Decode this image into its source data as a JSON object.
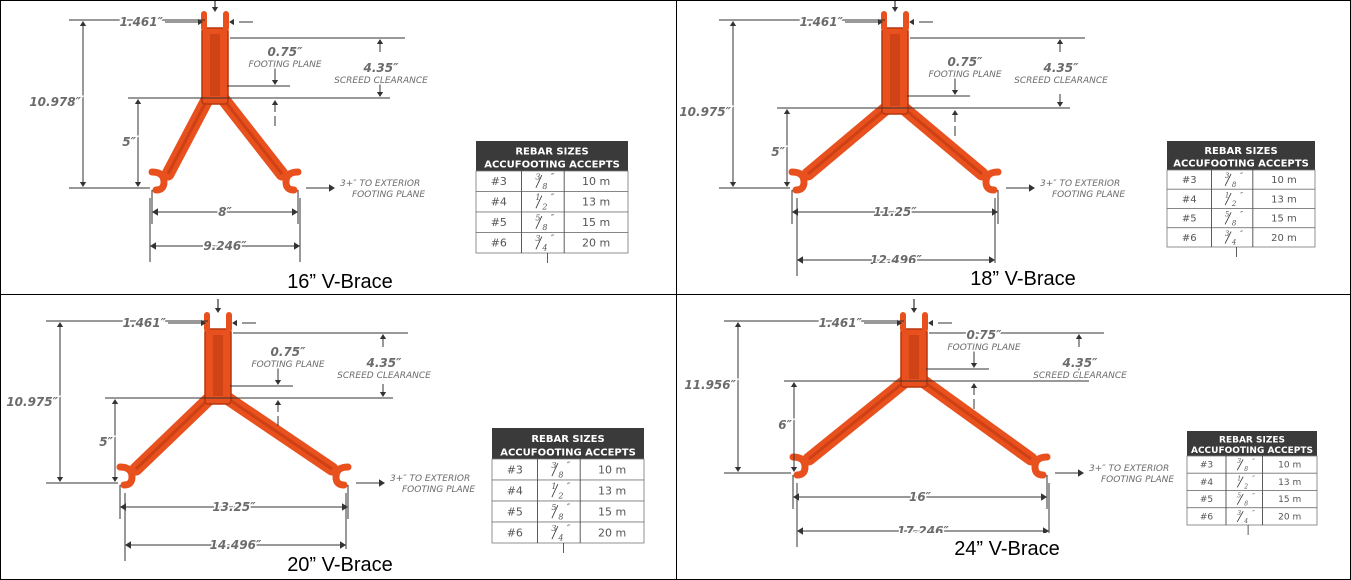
{
  "panels": [
    {
      "caption": "16” V-Brace",
      "dims": {
        "height": "10.978″",
        "top_width": "1.461″",
        "footing": "0.75″",
        "footing_label": "FOOTING PLANE",
        "screed": "4.35″",
        "screed_label": "SCREED CLEARANCE",
        "leg": "5″",
        "inner": "8″",
        "outer": "9.246″",
        "exterior_1": "3+″ TO EXTERIOR",
        "exterior_2": "FOOTING PLANE"
      }
    },
    {
      "caption": "18” V-Brace",
      "dims": {
        "height": "10.975″",
        "top_width": "1.461″",
        "footing": "0.75″",
        "footing_label": "FOOTING PLANE",
        "screed": "4.35″",
        "screed_label": "SCREED CLEARANCE",
        "leg": "5″",
        "inner": "11.25″",
        "outer": "12.496″",
        "exterior_1": "3+″ TO EXTERIOR",
        "exterior_2": "FOOTING PLANE"
      }
    },
    {
      "caption": "20” V-Brace",
      "dims": {
        "height": "10.975″",
        "top_width": "1.461″",
        "footing": "0.75″",
        "footing_label": "FOOTING PLANE",
        "screed": "4.35″",
        "screed_label": "SCREED CLEARANCE",
        "leg": "5″",
        "inner": "13.25″",
        "outer": "14.496″",
        "exterior_1": "3+″ TO EXTERIOR",
        "exterior_2": "FOOTING PLANE"
      }
    },
    {
      "caption": "24” V-Brace",
      "dims": {
        "height": "11.956″",
        "top_width": "1.461″",
        "footing": "0.75″",
        "footing_label": "FOOTING PLANE",
        "screed": "4.35″",
        "screed_label": "SCREED CLEARANCE",
        "leg": "6″",
        "inner": "16″",
        "outer": "17.246″",
        "exterior_1": "3+″ TO EXTERIOR",
        "exterior_2": "FOOTING PLANE"
      }
    }
  ],
  "rebar_table": {
    "title_1": "REBAR SIZES",
    "title_2": "ACCUFOOTING ACCEPTS",
    "rows": [
      {
        "bar": "#3",
        "num": "3",
        "den": "8",
        "suffix": "″",
        "metric": "10 m"
      },
      {
        "bar": "#4",
        "num": "1",
        "den": "2",
        "suffix": "″",
        "metric": "13 m"
      },
      {
        "bar": "#5",
        "num": "5",
        "den": "8",
        "suffix": "″",
        "metric": "15 m"
      },
      {
        "bar": "#6",
        "num": "3",
        "den": "4",
        "suffix": "″",
        "metric": "20 m"
      }
    ]
  },
  "colors": {
    "brace": "#e8501e",
    "brace_dark": "#b8350f",
    "dim_text": "#6b6b6b",
    "table_header": "#3a3a3a"
  }
}
